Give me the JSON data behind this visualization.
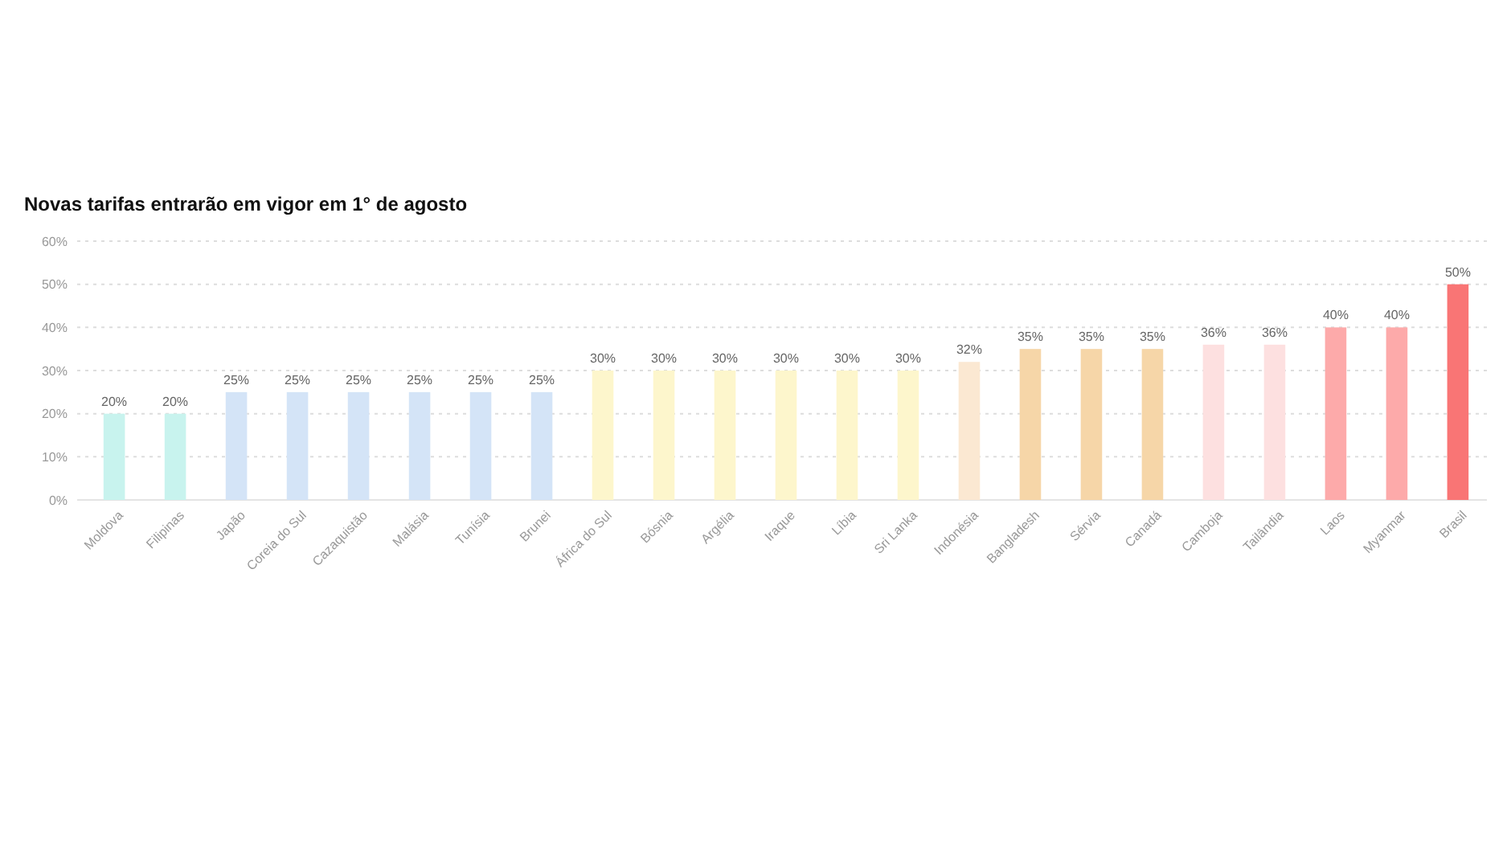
{
  "chart_data": {
    "type": "bar",
    "title": "Novas tarifas entrarão em vigor em 1° de agosto",
    "categories": [
      "Moldova",
      "Filipinas",
      "Japão",
      "Coreia do Sul",
      "Cazaquistão",
      "Malásia",
      "Tunísia",
      "Brunei",
      "África do Sul",
      "Bósnia",
      "Argélia",
      "Iraque",
      "Líbia",
      "Sri Lanka",
      "Indonésia",
      "Bangladesh",
      "Sérvia",
      "Canadá",
      "Camboja",
      "Tailândia",
      "Laos",
      "Myanmar",
      "Brasil"
    ],
    "values": [
      20,
      20,
      25,
      25,
      25,
      25,
      25,
      25,
      30,
      30,
      30,
      30,
      30,
      30,
      32,
      35,
      35,
      35,
      36,
      36,
      40,
      40,
      50
    ],
    "colors": [
      "#c8f3ee",
      "#c8f3ee",
      "#d4e4f7",
      "#d4e4f7",
      "#d4e4f7",
      "#d4e4f7",
      "#d4e4f7",
      "#d4e4f7",
      "#fdf6cc",
      "#fdf6cc",
      "#fdf6cc",
      "#fdf6cc",
      "#fdf6cc",
      "#fdf6cc",
      "#fbe8d2",
      "#f6d6a8",
      "#f6d6a8",
      "#f6d6a8",
      "#fde0e0",
      "#fde0e0",
      "#fdaaaa",
      "#fdaaaa",
      "#f97575"
    ],
    "value_labels": [
      "20%",
      "20%",
      "25%",
      "25%",
      "25%",
      "25%",
      "25%",
      "25%",
      "30%",
      "30%",
      "30%",
      "30%",
      "30%",
      "30%",
      "32%",
      "35%",
      "35%",
      "35%",
      "36%",
      "36%",
      "40%",
      "40%",
      "50%"
    ],
    "ylim": [
      0,
      60
    ],
    "yticks": [
      {
        "value": 0,
        "label": "0%"
      },
      {
        "value": 10,
        "label": "10%"
      },
      {
        "value": 20,
        "label": "20%"
      },
      {
        "value": 30,
        "label": "30%"
      },
      {
        "value": 40,
        "label": "40%"
      },
      {
        "value": 50,
        "label": "50%"
      },
      {
        "value": 60,
        "label": "60%"
      }
    ],
    "grid": "y"
  }
}
